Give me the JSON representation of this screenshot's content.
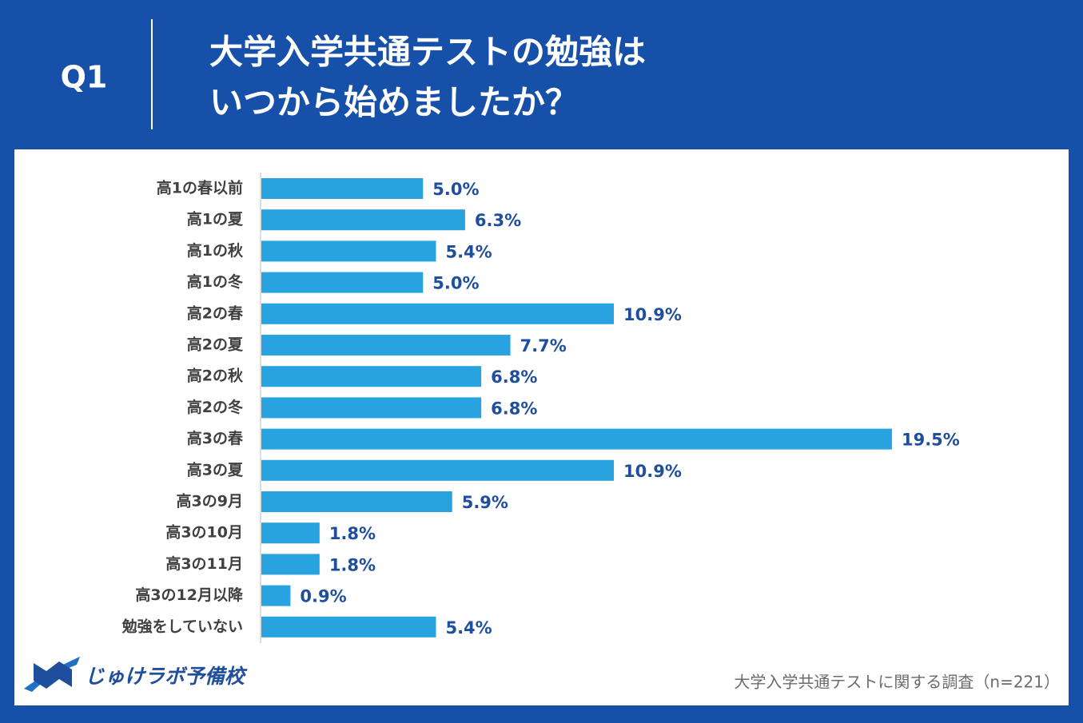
{
  "chart_data": {
    "type": "bar",
    "orientation": "horizontal",
    "question": "Q1",
    "title": [
      "大学入学共通テストの勉強は",
      "いつから始めましたか？"
    ],
    "categories": [
      "高1の春以前",
      "高1の夏",
      "高1の秋",
      "高1の冬",
      "高2の春",
      "高2の夏",
      "高2の秋",
      "高2の冬",
      "高3の春",
      "高3の夏",
      "高3の9月",
      "高3の10月",
      "高3の11月",
      "高3の12月以降",
      "勉強をしていない"
    ],
    "values": [
      5.0,
      6.3,
      5.4,
      5.0,
      10.9,
      7.7,
      6.8,
      6.8,
      19.5,
      10.9,
      5.9,
      1.8,
      1.8,
      0.9,
      5.4
    ],
    "value_labels": [
      "5.0%",
      "6.3%",
      "5.4%",
      "5.0%",
      "10.9%",
      "7.7%",
      "6.8%",
      "6.8%",
      "19.5%",
      "10.9%",
      "5.9%",
      "1.8%",
      "1.8%",
      "0.9%",
      "5.4%"
    ],
    "color": "#29a3e0",
    "label_color": "#1f4e9c",
    "source": "大学入学共通テストに関する調査（n=221）",
    "logo": "じゅけラボ予備校"
  }
}
